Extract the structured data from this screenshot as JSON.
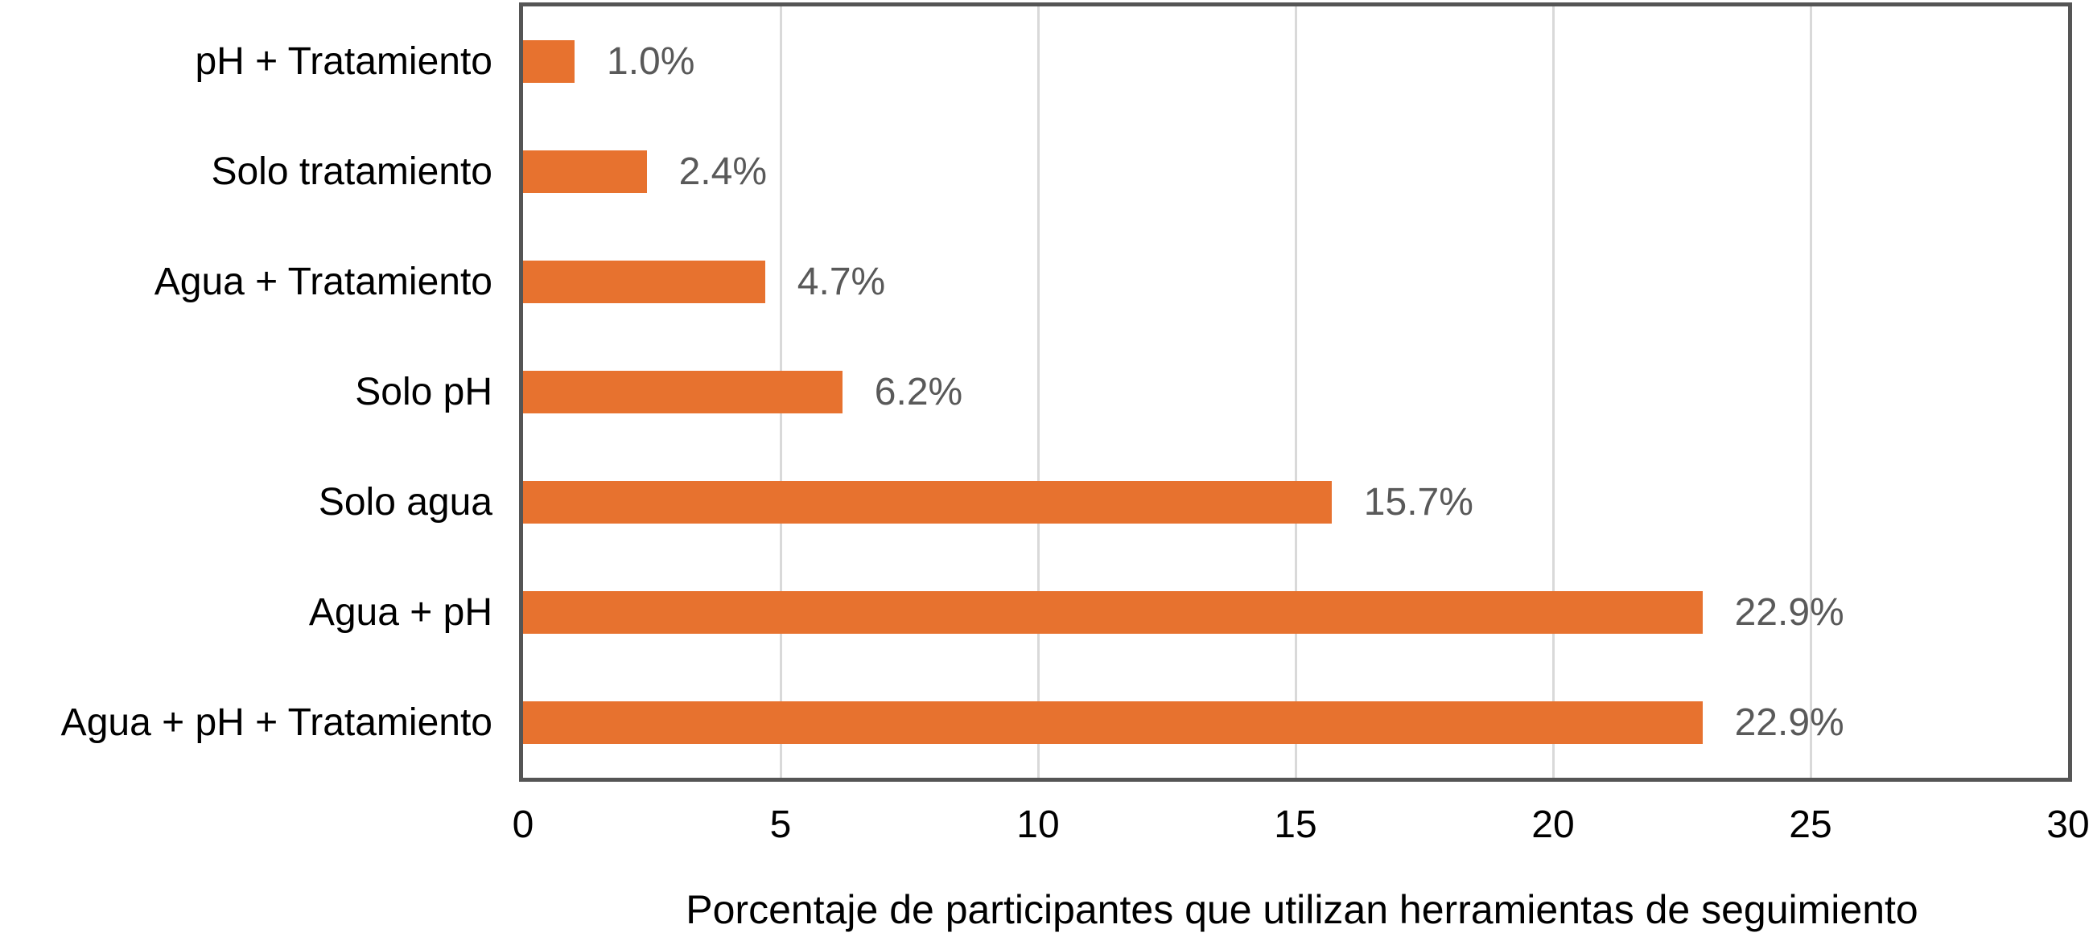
{
  "chart_data": {
    "type": "bar",
    "orientation": "horizontal",
    "categories": [
      "pH + Tratamiento",
      "Solo tratamiento",
      "Agua + Tratamiento",
      "Solo pH",
      "Solo agua",
      "Agua + pH",
      "Agua + pH + Tratamiento"
    ],
    "values": [
      1.0,
      2.4,
      4.7,
      6.2,
      15.7,
      22.9,
      22.9
    ],
    "value_labels": [
      "1.0%",
      "2.4%",
      "4.7%",
      "6.2%",
      "15.7%",
      "22.9%",
      "22.9%"
    ],
    "title": "",
    "xlabel": "Porcentaje de participantes que utilizan herramientas de seguimiento",
    "ylabel": "",
    "xlim": [
      0,
      30
    ],
    "xticks": [
      0,
      5,
      10,
      15,
      20,
      25,
      30
    ],
    "grid": true,
    "legend_position": "none",
    "colors": {
      "bar": "#e7722f",
      "frame": "#555555",
      "gridline": "#d9d9d9",
      "value_label": "#595959",
      "tick_label": "#000000",
      "background": "#ffffff"
    }
  }
}
